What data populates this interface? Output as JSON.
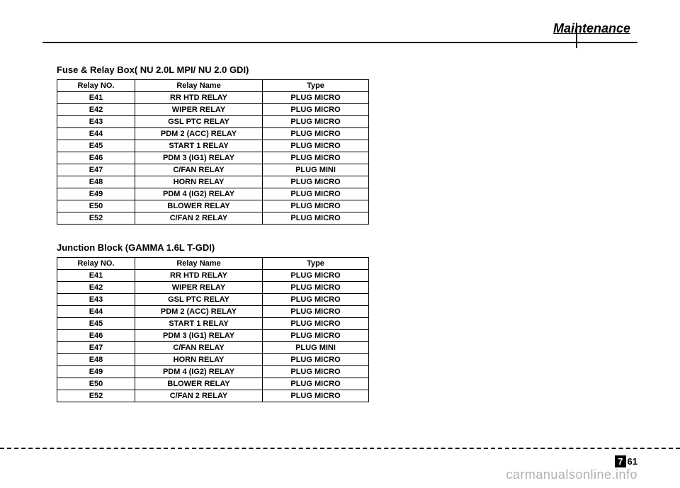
{
  "section_header": "Maintenance",
  "table1": {
    "title": "Fuse & Relay Box( NU 2.0L MPI/ NU 2.0 GDI)",
    "headers": [
      "Relay NO.",
      "Relay Name",
      "Type"
    ],
    "rows": [
      [
        "E41",
        "RR HTD RELAY",
        "PLUG MICRO"
      ],
      [
        "E42",
        "WIPER RELAY",
        "PLUG MICRO"
      ],
      [
        "E43",
        "GSL PTC RELAY",
        "PLUG MICRO"
      ],
      [
        "E44",
        "PDM 2 (ACC) RELAY",
        "PLUG MICRO"
      ],
      [
        "E45",
        "START 1 RELAY",
        "PLUG MICRO"
      ],
      [
        "E46",
        "PDM 3 (IG1) RELAY",
        "PLUG MICRO"
      ],
      [
        "E47",
        "C/FAN RELAY",
        "PLUG MINI"
      ],
      [
        "E48",
        "HORN RELAY",
        "PLUG MICRO"
      ],
      [
        "E49",
        "PDM 4 (IG2) RELAY",
        "PLUG MICRO"
      ],
      [
        "E50",
        "BLOWER RELAY",
        "PLUG MICRO"
      ],
      [
        "E52",
        "C/FAN 2 RELAY",
        "PLUG MICRO"
      ]
    ]
  },
  "table2": {
    "title": "Junction Block (GAMMA 1.6L T-GDI)",
    "headers": [
      "Relay NO.",
      "Relay Name",
      "Type"
    ],
    "rows": [
      [
        "E41",
        "RR HTD RELAY",
        "PLUG MICRO"
      ],
      [
        "E42",
        "WIPER RELAY",
        "PLUG MICRO"
      ],
      [
        "E43",
        "GSL PTC RELAY",
        "PLUG MICRO"
      ],
      [
        "E44",
        "PDM 2 (ACC) RELAY",
        "PLUG MICRO"
      ],
      [
        "E45",
        "START 1 RELAY",
        "PLUG MICRO"
      ],
      [
        "E46",
        "PDM 3 (IG1) RELAY",
        "PLUG MICRO"
      ],
      [
        "E47",
        "C/FAN RELAY",
        "PLUG MINI"
      ],
      [
        "E48",
        "HORN RELAY",
        "PLUG MICRO"
      ],
      [
        "E49",
        "PDM 4 (IG2) RELAY",
        "PLUG MICRO"
      ],
      [
        "E50",
        "BLOWER RELAY",
        "PLUG MICRO"
      ],
      [
        "E52",
        "C/FAN 2 RELAY",
        "PLUG MICRO"
      ]
    ]
  },
  "page_number": {
    "chapter": "7",
    "page": "61"
  },
  "watermark": "carmanualsonline.info"
}
